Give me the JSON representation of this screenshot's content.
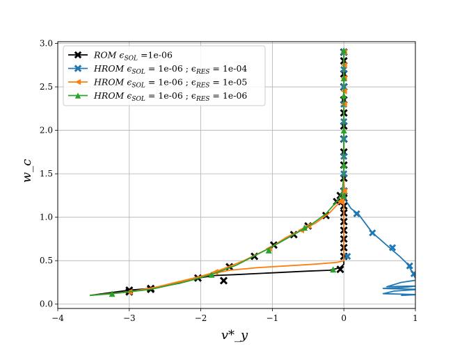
{
  "chart_data": {
    "type": "line",
    "title": "",
    "xlabel": "v*_y",
    "ylabel": "w_c",
    "xlim": [
      -4,
      1
    ],
    "ylim": [
      -0.05,
      3.02
    ],
    "x_ticks": [
      -4,
      -3,
      -2,
      -1,
      0,
      1
    ],
    "x_tick_labels": [
      "−4",
      "−3",
      "−2",
      "−1",
      "0",
      "1"
    ],
    "y_ticks": [
      0.0,
      0.5,
      1.0,
      1.5,
      2.0,
      2.5,
      3.0
    ],
    "y_tick_labels": [
      "0.0",
      "0.5",
      "1.0",
      "1.5",
      "2.0",
      "2.5",
      "3.0"
    ],
    "grid": true,
    "legend_position": "top-left",
    "series": [
      {
        "name": "ROM ϵ_SOL =1e-06",
        "legend_parts": [
          "ROM ϵ",
          "SOL",
          " =1e-06"
        ],
        "color": "#000000",
        "marker": "x",
        "points": [
          [
            -3.55,
            0.1
          ],
          [
            -3.0,
            0.16
          ],
          [
            -2.7,
            0.18
          ],
          [
            -2.3,
            0.24
          ],
          [
            -2.04,
            0.3
          ],
          [
            -1.8,
            0.33
          ],
          [
            -1.5,
            0.34
          ],
          [
            -1.0,
            0.36
          ],
          [
            -0.5,
            0.38
          ],
          [
            -0.2,
            0.39
          ],
          [
            -0.05,
            0.42
          ],
          [
            0,
            0.46
          ],
          [
            0,
            0.55
          ],
          [
            0,
            0.65
          ],
          [
            0,
            0.75
          ],
          [
            0,
            0.85
          ],
          [
            0,
            0.95
          ],
          [
            0,
            1.05
          ],
          [
            0,
            1.1
          ],
          [
            0,
            1.2
          ],
          [
            0,
            1.35
          ],
          [
            0,
            1.5
          ],
          [
            0,
            1.7
          ],
          [
            0,
            1.9
          ],
          [
            0,
            2.1
          ],
          [
            0,
            2.3
          ],
          [
            0,
            2.5
          ],
          [
            0,
            2.7
          ],
          [
            0,
            2.9
          ]
        ],
        "markers": [
          [
            -3.0,
            0.16
          ],
          [
            -2.7,
            0.18
          ],
          [
            -2.04,
            0.3
          ],
          [
            -1.68,
            0.27
          ],
          [
            -0.05,
            0.4
          ],
          [
            0,
            0.55
          ],
          [
            0,
            0.65
          ],
          [
            0,
            0.75
          ],
          [
            0,
            0.85
          ],
          [
            0,
            0.95
          ],
          [
            0,
            1.05
          ],
          [
            0,
            1.13
          ],
          [
            0,
            1.22
          ],
          [
            0,
            1.3
          ],
          [
            0,
            1.45
          ],
          [
            0,
            1.6
          ],
          [
            0,
            1.75
          ],
          [
            0,
            1.9
          ],
          [
            0,
            2.05
          ],
          [
            0,
            2.2
          ],
          [
            0,
            2.35
          ],
          [
            0,
            2.5
          ],
          [
            0,
            2.65
          ],
          [
            0,
            2.8
          ],
          [
            0,
            2.9
          ],
          [
            -3.0,
            0.14
          ],
          [
            -2.7,
            0.17
          ],
          [
            -1.6,
            0.43
          ],
          [
            -1.25,
            0.55
          ],
          [
            -0.98,
            0.68
          ],
          [
            -0.7,
            0.8
          ],
          [
            -0.5,
            0.9
          ],
          [
            -0.25,
            1.02
          ],
          [
            -0.1,
            1.18
          ],
          [
            -0.05,
            1.25
          ]
        ]
      },
      {
        "name": "HROM ϵ_SOL = 1e-06 ; ϵ_RES = 1e-04",
        "legend_parts": [
          "HROM ϵ",
          "SOL",
          " = 1e-06 ; ϵ",
          "RES",
          " = 1e-04"
        ],
        "color": "#1f77b4",
        "marker": "X",
        "points": [
          [
            0,
            2.92
          ],
          [
            0,
            2.6
          ],
          [
            0,
            2.3
          ],
          [
            0,
            2.0
          ],
          [
            0,
            1.7
          ],
          [
            0,
            1.4
          ],
          [
            0.02,
            1.2
          ],
          [
            0.1,
            1.1
          ],
          [
            0.2,
            1.04
          ],
          [
            0.4,
            0.82
          ],
          [
            0.5,
            0.75
          ],
          [
            0.68,
            0.62
          ],
          [
            0.78,
            0.55
          ],
          [
            0.88,
            0.47
          ],
          [
            0.92,
            0.42
          ],
          [
            0.96,
            0.36
          ],
          [
            0.98,
            0.33
          ],
          [
            1.0,
            0.3
          ],
          [
            1.05,
            0.28
          ],
          [
            0.8,
            0.25
          ],
          [
            0.6,
            0.2
          ],
          [
            1.05,
            0.21
          ],
          [
            0.8,
            0.19
          ],
          [
            0.55,
            0.18
          ],
          [
            1.05,
            0.17
          ],
          [
            0.7,
            0.15
          ],
          [
            0.55,
            0.12
          ],
          [
            1.05,
            0.11
          ],
          [
            0.8,
            0.1
          ]
        ],
        "markers": [
          [
            0,
            2.9
          ],
          [
            0,
            2.7
          ],
          [
            0,
            2.5
          ],
          [
            0,
            2.3
          ],
          [
            0,
            2.1
          ],
          [
            0,
            1.9
          ],
          [
            0,
            1.7
          ],
          [
            0,
            1.5
          ],
          [
            0,
            1.3
          ],
          [
            0.18,
            1.04
          ],
          [
            0.4,
            0.82
          ],
          [
            0.68,
            0.65
          ],
          [
            0.05,
            0.55
          ],
          [
            0.92,
            0.44
          ],
          [
            0.98,
            0.35
          ]
        ]
      },
      {
        "name": "HROM ϵ_SOL = 1e-06 ; ϵ_RES = 1e-05",
        "legend_parts": [
          "HROM ϵ",
          "SOL",
          " = 1e-06 ; ϵ",
          "RES",
          " = 1e-05"
        ],
        "color": "#ff7f0e",
        "marker": "<",
        "points": [
          [
            -3.55,
            0.1
          ],
          [
            -3.0,
            0.14
          ],
          [
            -2.6,
            0.2
          ],
          [
            -2.2,
            0.28
          ],
          [
            -1.9,
            0.34
          ],
          [
            -1.6,
            0.39
          ],
          [
            -1.2,
            0.42
          ],
          [
            -0.8,
            0.44
          ],
          [
            -0.4,
            0.46
          ],
          [
            -0.1,
            0.48
          ],
          [
            0,
            0.5
          ],
          [
            0,
            0.55
          ],
          [
            0,
            0.8
          ],
          [
            0,
            1.1
          ],
          [
            0,
            1.4
          ],
          [
            0,
            1.7
          ],
          [
            0,
            2.0
          ],
          [
            0,
            2.3
          ],
          [
            0,
            2.6
          ],
          [
            0,
            2.92
          ]
        ],
        "markers": [
          [
            -3.0,
            0.14
          ],
          [
            -1.8,
            0.37
          ],
          [
            -1.05,
            0.64
          ],
          [
            -0.6,
            0.85
          ],
          [
            -0.5,
            0.9
          ],
          [
            -0.05,
            1.18
          ],
          [
            0,
            1.3
          ],
          [
            0,
            2.9
          ],
          [
            0,
            2.75
          ],
          [
            0,
            2.6
          ],
          [
            0,
            2.45
          ],
          [
            0,
            2.3
          ]
        ],
        "branch": [
          [
            -3.0,
            0.14
          ],
          [
            -2.6,
            0.2
          ],
          [
            -2.2,
            0.27
          ],
          [
            -1.8,
            0.37
          ],
          [
            -1.4,
            0.5
          ],
          [
            -1.05,
            0.64
          ],
          [
            -0.8,
            0.77
          ],
          [
            -0.6,
            0.85
          ],
          [
            -0.4,
            0.93
          ],
          [
            -0.2,
            1.05
          ],
          [
            -0.05,
            1.18
          ],
          [
            0,
            1.3
          ]
        ]
      },
      {
        "name": "HROM ϵ_SOL = 1e-06 ; ϵ_RES = 1e-06",
        "legend_parts": [
          "HROM ϵ",
          "SOL",
          " = 1e-06 ; ϵ",
          "RES",
          " = 1e-06"
        ],
        "color": "#2ca02c",
        "marker": "^",
        "points": [
          [
            -3.55,
            0.1
          ],
          [
            -3.24,
            0.12
          ],
          [
            -2.7,
            0.17
          ],
          [
            -2.2,
            0.26
          ],
          [
            -1.85,
            0.34
          ],
          [
            -1.5,
            0.45
          ],
          [
            -1.05,
            0.64
          ],
          [
            -0.7,
            0.8
          ],
          [
            -0.45,
            0.92
          ],
          [
            -0.25,
            1.04
          ],
          [
            -0.08,
            1.2
          ],
          [
            -0.02,
            1.3
          ],
          [
            0,
            1.5
          ],
          [
            0,
            1.8
          ],
          [
            0,
            2.1
          ],
          [
            0,
            2.4
          ],
          [
            0,
            2.7
          ],
          [
            0,
            2.92
          ]
        ],
        "markers": [
          [
            -3.24,
            0.12
          ],
          [
            -1.85,
            0.34
          ],
          [
            -1.05,
            0.62
          ],
          [
            -0.55,
            0.88
          ],
          [
            -0.15,
            0.4
          ],
          [
            0,
            1.25
          ],
          [
            0,
            1.6
          ],
          [
            0,
            2.0
          ],
          [
            0,
            2.4
          ],
          [
            0,
            2.6
          ],
          [
            0,
            2.92
          ]
        ]
      }
    ]
  }
}
